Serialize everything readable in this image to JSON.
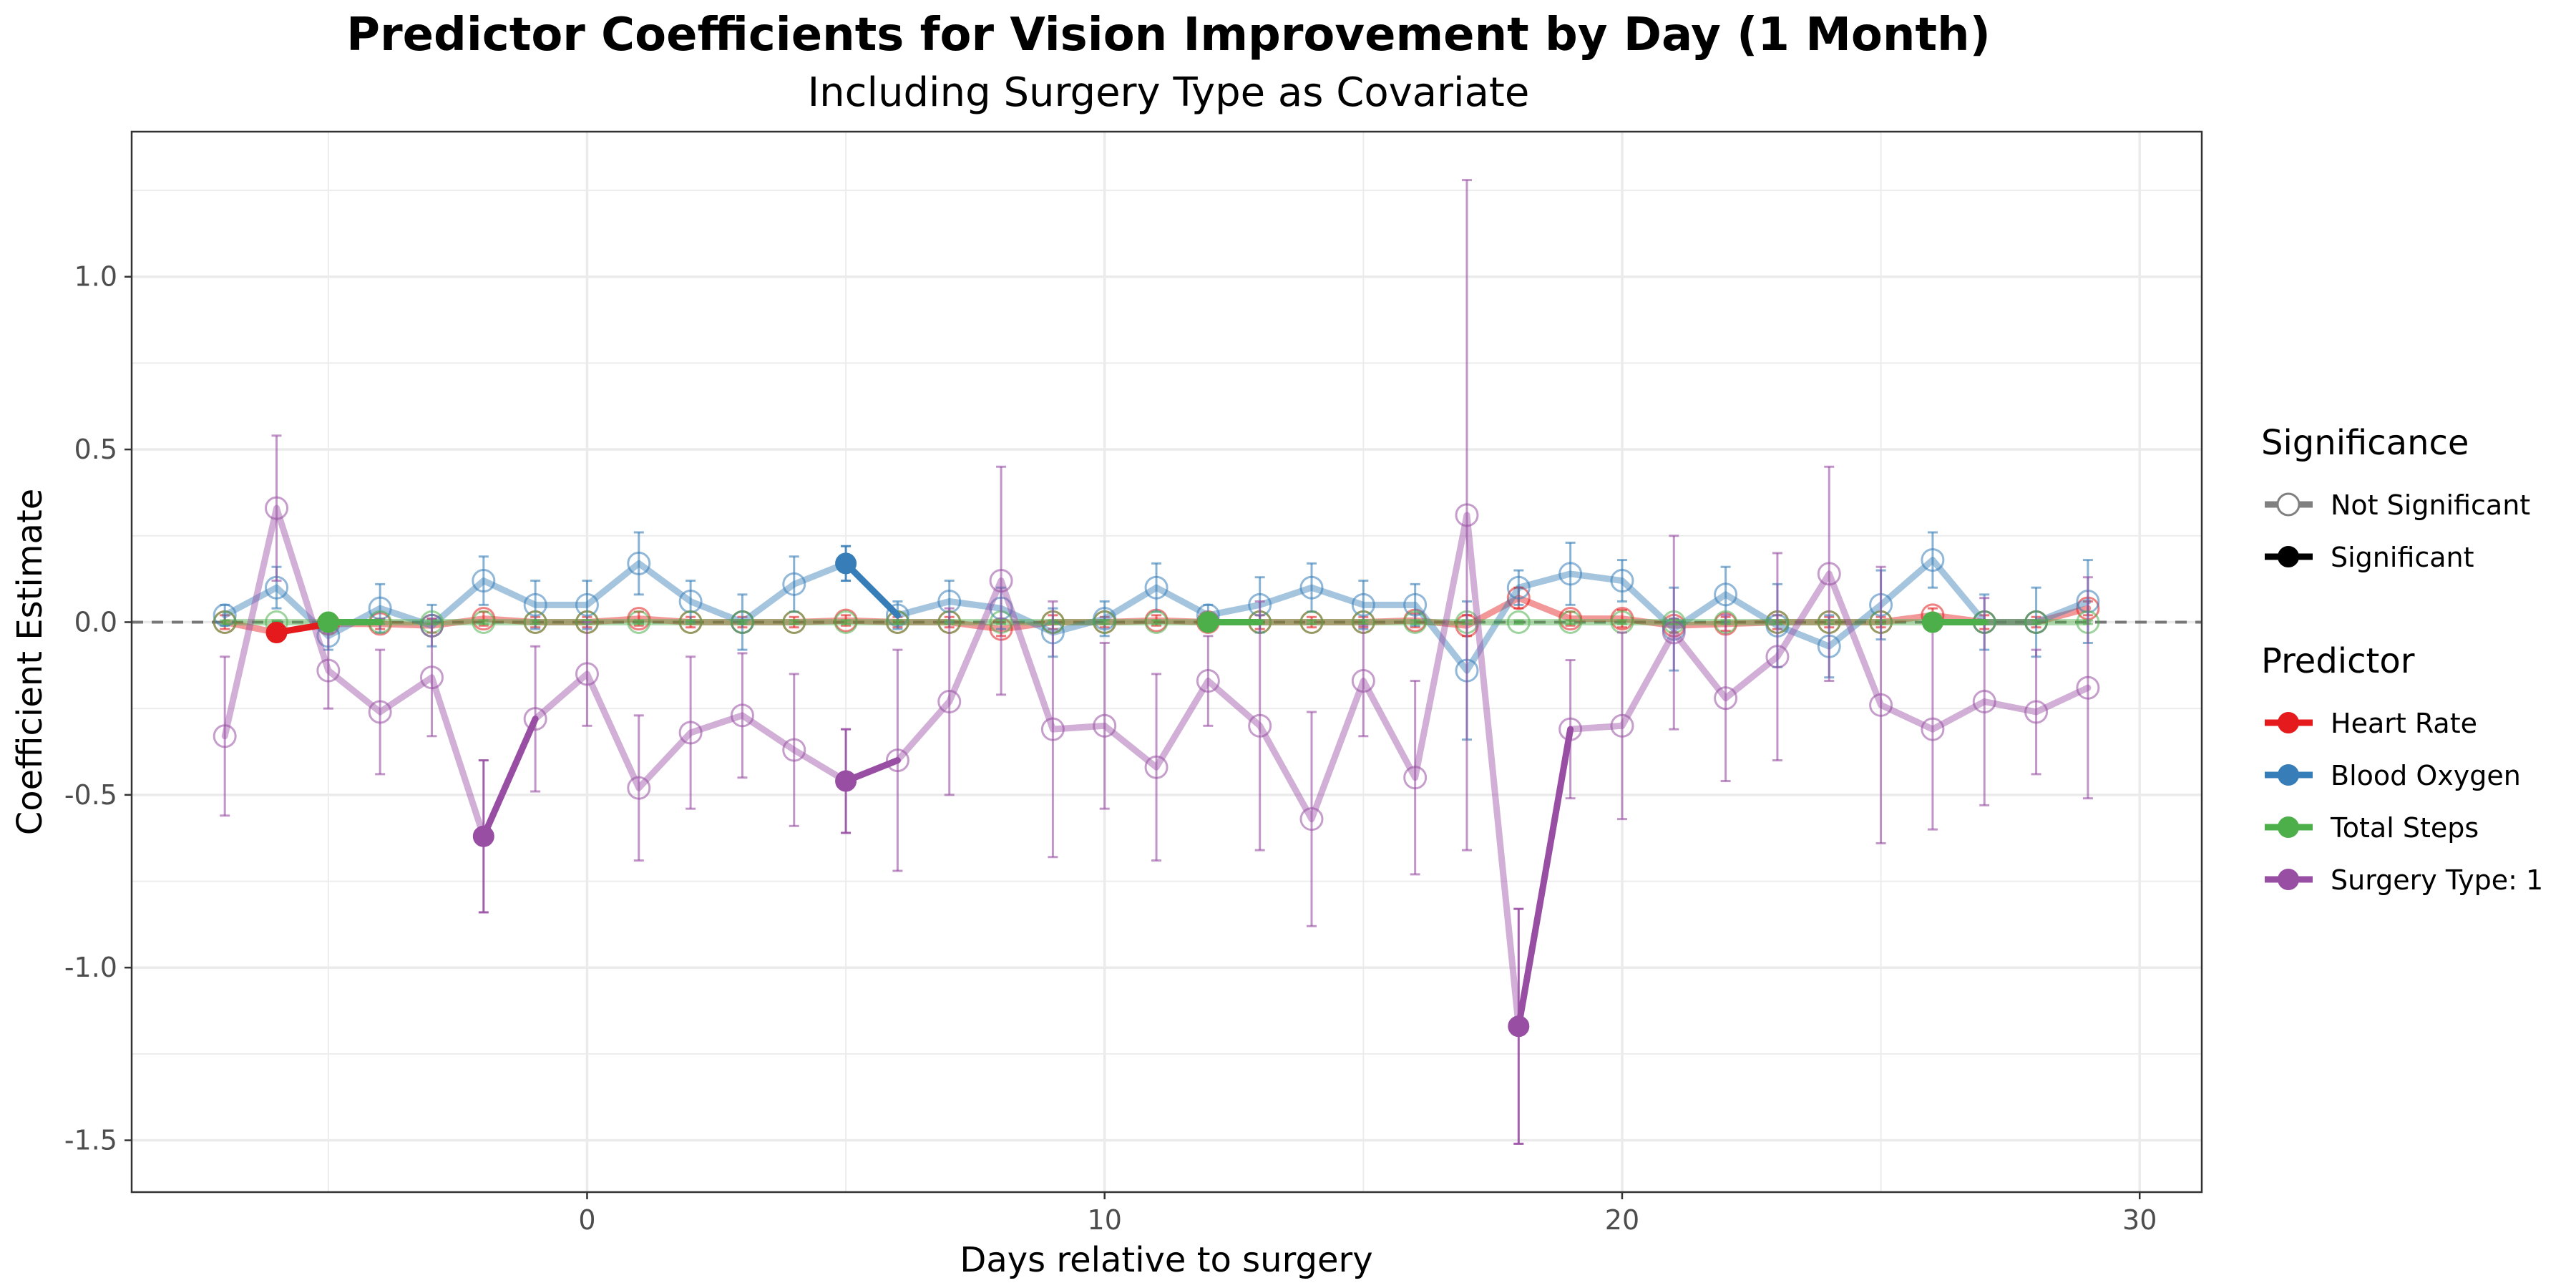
{
  "chart_data": {
    "type": "line",
    "title": "Predictor Coefficients for Vision Improvement by Day (1 Month)",
    "subtitle": "Including Surgery Type as Covariate",
    "xlabel": "Days relative to surgery",
    "ylabel": "Coefficient Estimate",
    "xlim": [
      -8.8,
      31.2
    ],
    "ylim": [
      -1.65,
      1.42
    ],
    "x_ticks": [
      0,
      10,
      20,
      30
    ],
    "y_ticks": [
      -1.5,
      -1.0,
      -0.5,
      0.0,
      0.5,
      1.0
    ],
    "y_tick_labels": [
      "-1.5",
      "-1.0",
      "-0.5",
      "0.0",
      "0.5",
      "1.0"
    ],
    "grid": true,
    "reference_line_y": 0,
    "legend_position": "right",
    "legends": {
      "significance": {
        "title": "Significance",
        "items": [
          {
            "label": "Not Significant",
            "color": "#808080"
          },
          {
            "label": "Significant",
            "color": "#000000"
          }
        ]
      },
      "predictor": {
        "title": "Predictor",
        "items": [
          {
            "label": "Heart Rate",
            "color": "#E41A1C"
          },
          {
            "label": "Blood Oxygen",
            "color": "#377EB8"
          },
          {
            "label": "Total Steps",
            "color": "#4DAF4A"
          },
          {
            "label": "Surgery Type: 1",
            "color": "#984EA3"
          }
        ]
      }
    },
    "x": [
      -7,
      -6,
      -5,
      -4,
      -3,
      -2,
      -1,
      0,
      1,
      2,
      3,
      4,
      5,
      6,
      7,
      8,
      9,
      10,
      11,
      12,
      13,
      14,
      15,
      16,
      17,
      18,
      19,
      20,
      21,
      22,
      23,
      24,
      25,
      26,
      27,
      28,
      29
    ],
    "series": [
      {
        "name": "Heart Rate",
        "color": "#E41A1C",
        "values": [
          0.0,
          -0.03,
          -0.005,
          -0.005,
          -0.01,
          0.01,
          0.0,
          0.0,
          0.01,
          0.0,
          0.0,
          0.0,
          0.005,
          0.0,
          0.0,
          -0.02,
          0.0,
          0.0,
          0.005,
          0.0,
          0.0,
          0.0,
          0.0,
          0.005,
          -0.01,
          0.07,
          0.01,
          0.01,
          -0.01,
          -0.005,
          0.0,
          0.0,
          0.0,
          0.02,
          0.0,
          0.0,
          0.04
        ],
        "err": [
          0.02,
          0.02,
          0.015,
          0.015,
          0.02,
          0.02,
          0.015,
          0.015,
          0.02,
          0.015,
          0.015,
          0.015,
          0.015,
          0.015,
          0.015,
          0.02,
          0.02,
          0.015,
          0.015,
          0.015,
          0.02,
          0.015,
          0.015,
          0.02,
          0.03,
          0.03,
          0.02,
          0.025,
          0.02,
          0.02,
          0.02,
          0.015,
          0.015,
          0.02,
          0.02,
          0.015,
          0.02
        ],
        "sig": [
          false,
          true,
          false,
          false,
          false,
          false,
          false,
          false,
          false,
          false,
          false,
          false,
          false,
          false,
          false,
          false,
          false,
          false,
          false,
          false,
          false,
          false,
          false,
          false,
          false,
          false,
          false,
          false,
          false,
          false,
          false,
          false,
          false,
          false,
          false,
          false,
          false
        ]
      },
      {
        "name": "Blood Oxygen",
        "color": "#377EB8",
        "values": [
          0.02,
          0.1,
          -0.04,
          0.04,
          -0.01,
          0.12,
          0.05,
          0.05,
          0.17,
          0.06,
          0.0,
          0.11,
          0.17,
          0.02,
          0.06,
          0.04,
          -0.03,
          0.01,
          0.1,
          0.02,
          0.05,
          0.1,
          0.05,
          0.05,
          -0.14,
          0.1,
          0.14,
          0.12,
          -0.02,
          0.08,
          -0.01,
          -0.07,
          0.05,
          0.18,
          0.0,
          0.0,
          0.06
        ],
        "err": [
          0.03,
          0.06,
          0.04,
          0.07,
          0.06,
          0.07,
          0.07,
          0.07,
          0.09,
          0.06,
          0.08,
          0.08,
          0.05,
          0.04,
          0.06,
          0.06,
          0.07,
          0.05,
          0.07,
          0.03,
          0.08,
          0.07,
          0.07,
          0.06,
          0.2,
          0.05,
          0.09,
          0.06,
          0.12,
          0.08,
          0.12,
          0.09,
          0.1,
          0.08,
          0.08,
          0.1,
          0.12
        ],
        "sig": [
          false,
          false,
          false,
          false,
          false,
          false,
          false,
          false,
          false,
          false,
          false,
          false,
          true,
          false,
          false,
          false,
          false,
          false,
          false,
          false,
          false,
          false,
          false,
          false,
          false,
          false,
          false,
          false,
          false,
          false,
          false,
          false,
          false,
          false,
          false,
          false,
          false
        ]
      },
      {
        "name": "Total Steps",
        "color": "#4DAF4A",
        "values": [
          0.0,
          0.0,
          0.0,
          0.0,
          0.0,
          0.0,
          0.0,
          0.0,
          0.0,
          0.0,
          0.0,
          0.0,
          0.0,
          0.0,
          0.0,
          0.0,
          0.0,
          0.0,
          0.0,
          0.0,
          0.0,
          0.0,
          0.0,
          0.0,
          0.0,
          0.0,
          0.0,
          0.0,
          0.0,
          0.0,
          0.0,
          0.0,
          0.0,
          0.0,
          0.0,
          0.0,
          0.0
        ],
        "err": [
          0.005,
          0.005,
          0.005,
          0.005,
          0.005,
          0.005,
          0.005,
          0.005,
          0.005,
          0.005,
          0.005,
          0.005,
          0.005,
          0.005,
          0.005,
          0.005,
          0.005,
          0.005,
          0.005,
          0.005,
          0.005,
          0.005,
          0.005,
          0.005,
          0.005,
          0.005,
          0.005,
          0.005,
          0.005,
          0.005,
          0.005,
          0.005,
          0.005,
          0.005,
          0.005,
          0.005,
          0.005
        ],
        "sig": [
          false,
          false,
          true,
          false,
          false,
          false,
          false,
          false,
          false,
          false,
          false,
          false,
          false,
          false,
          false,
          false,
          false,
          false,
          false,
          true,
          false,
          false,
          false,
          false,
          false,
          false,
          false,
          false,
          false,
          false,
          false,
          false,
          false,
          true,
          false,
          false,
          false
        ]
      },
      {
        "name": "Surgery Type: 1",
        "color": "#984EA3",
        "values": [
          -0.33,
          0.33,
          -0.14,
          -0.26,
          -0.16,
          -0.62,
          -0.28,
          -0.15,
          -0.48,
          -0.32,
          -0.27,
          -0.37,
          -0.46,
          -0.4,
          -0.23,
          0.12,
          -0.31,
          -0.3,
          -0.42,
          -0.17,
          -0.3,
          -0.57,
          -0.17,
          -0.45,
          0.31,
          -1.17,
          -0.31,
          -0.3,
          -0.03,
          -0.22,
          -0.1,
          0.14,
          -0.24,
          -0.31,
          -0.23,
          -0.26,
          -0.19
        ],
        "err": [
          0.23,
          0.21,
          0.11,
          0.18,
          0.17,
          0.22,
          0.21,
          0.15,
          0.21,
          0.22,
          0.18,
          0.22,
          0.15,
          0.32,
          0.27,
          0.33,
          0.37,
          0.24,
          0.27,
          0.13,
          0.36,
          0.31,
          0.16,
          0.28,
          0.97,
          0.34,
          0.2,
          0.27,
          0.28,
          0.24,
          0.3,
          0.31,
          0.4,
          0.29,
          0.3,
          0.18,
          0.32
        ],
        "sig": [
          false,
          false,
          false,
          false,
          false,
          true,
          false,
          false,
          false,
          false,
          false,
          false,
          true,
          false,
          false,
          false,
          false,
          false,
          false,
          false,
          false,
          false,
          false,
          false,
          false,
          true,
          false,
          false,
          false,
          false,
          false,
          false,
          false,
          false,
          false,
          false,
          false
        ]
      }
    ]
  }
}
